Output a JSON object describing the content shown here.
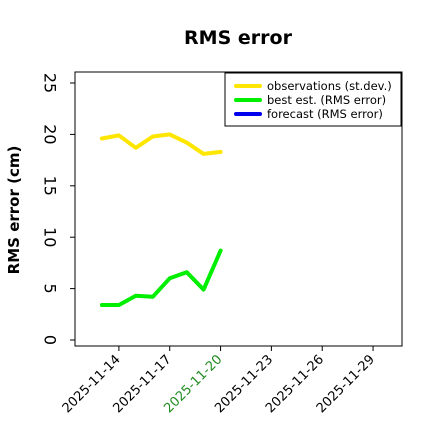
{
  "chart_data": {
    "type": "line",
    "title": "RMS error",
    "ylabel": "RMS error (cm)",
    "xlabel": "",
    "ylim": [
      0,
      25
    ],
    "xlim": [
      "2025-11-12",
      "2025-11-30"
    ],
    "yticks": [
      0,
      5,
      10,
      15,
      20,
      25
    ],
    "xticks": [
      "2025-11-14",
      "2025-11-17",
      "2025-11-20",
      "2025-11-23",
      "2025-11-26",
      "2025-11-29"
    ],
    "highlighted_xtick": "2025-11-20",
    "highlight_color": "#228B22",
    "grid": false,
    "legend_position": "top-right",
    "series": [
      {
        "name": "observations (st.dev.)",
        "color": "#FFE600",
        "x": [
          "2025-11-13",
          "2025-11-14",
          "2025-11-15",
          "2025-11-16",
          "2025-11-17",
          "2025-11-18",
          "2025-11-19",
          "2025-11-20"
        ],
        "values": [
          19.6,
          19.9,
          18.7,
          19.8,
          20.0,
          19.2,
          18.1,
          18.3
        ]
      },
      {
        "name": "best est. (RMS error)",
        "color": "#00EE00",
        "x": [
          "2025-11-13",
          "2025-11-14",
          "2025-11-15",
          "2025-11-16",
          "2025-11-17",
          "2025-11-18",
          "2025-11-19",
          "2025-11-20"
        ],
        "values": [
          3.4,
          3.4,
          4.3,
          4.2,
          6.0,
          6.6,
          4.9,
          8.7
        ]
      },
      {
        "name": "forecast (RMS error)",
        "color": "#0000EE",
        "x": [],
        "values": []
      }
    ]
  }
}
